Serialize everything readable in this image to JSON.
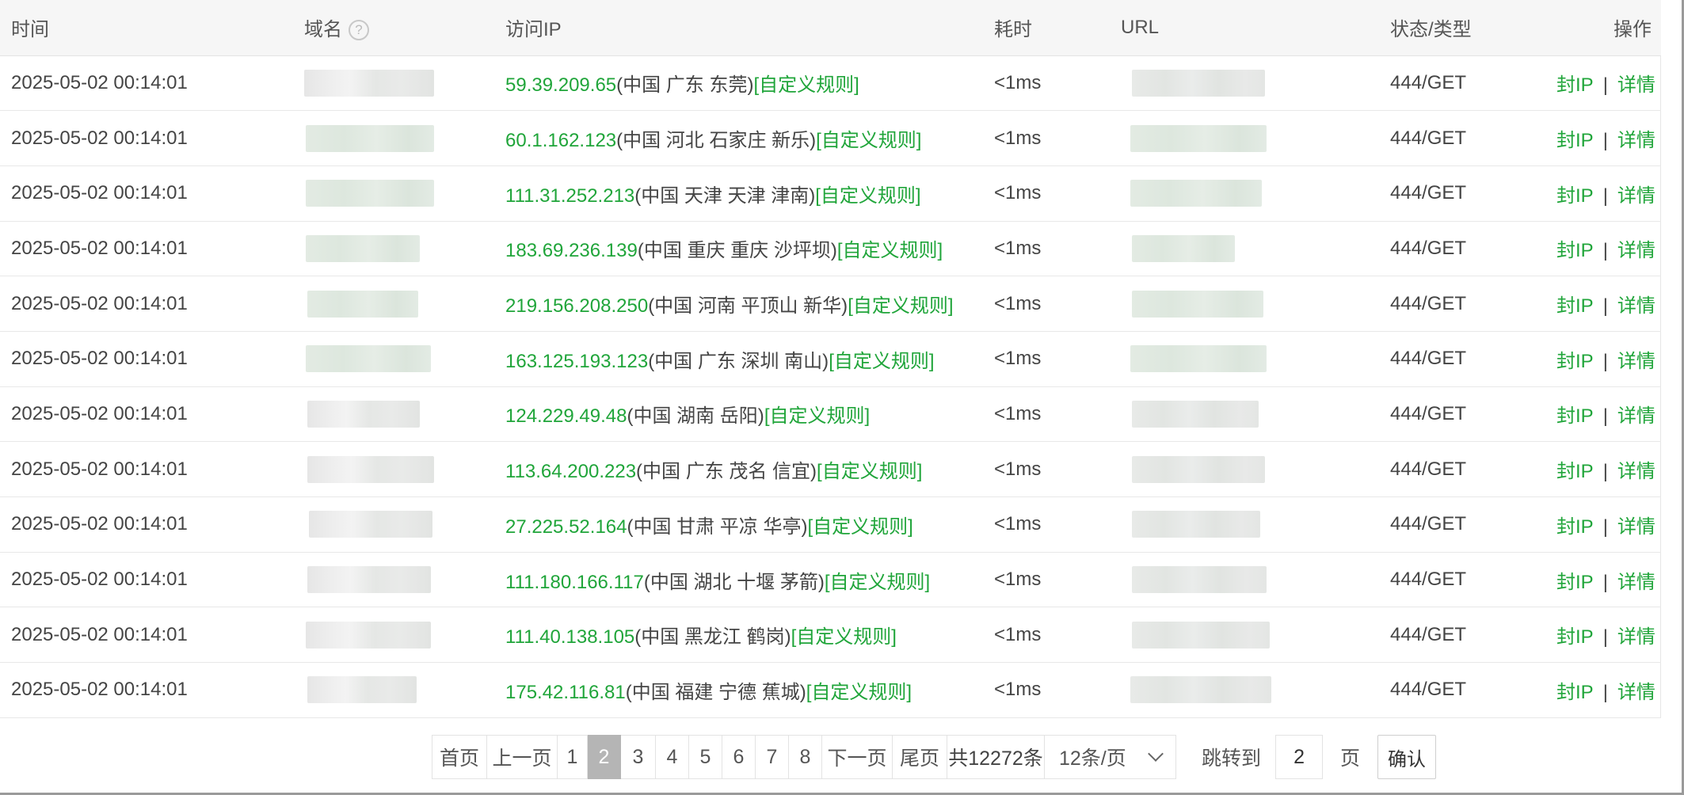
{
  "table": {
    "columns": {
      "time": "时间",
      "domain": "域名",
      "ip": "访问IP",
      "duration": "耗时",
      "url": "URL",
      "status": "状态/类型",
      "action": "操作"
    },
    "domain_help_icon": "question-circle-icon",
    "rows": [
      {
        "time": "2025-05-02 00:14:01",
        "ip": "59.39.209.65",
        "location": "(中国 广东 东莞)",
        "rule": "[自定义规则]",
        "duration": "<1ms",
        "status": "444/GET",
        "block_ip": "封IP",
        "sep": "|",
        "detail": "详情"
      },
      {
        "time": "2025-05-02 00:14:01",
        "ip": "60.1.162.123",
        "location": "(中国 河北 石家庄 新乐)",
        "rule": "[自定义规则]",
        "duration": "<1ms",
        "status": "444/GET",
        "block_ip": "封IP",
        "sep": "|",
        "detail": "详情"
      },
      {
        "time": "2025-05-02 00:14:01",
        "ip": "111.31.252.213",
        "location": "(中国 天津 天津 津南)",
        "rule": "[自定义规则]",
        "duration": "<1ms",
        "status": "444/GET",
        "block_ip": "封IP",
        "sep": "|",
        "detail": "详情"
      },
      {
        "time": "2025-05-02 00:14:01",
        "ip": "183.69.236.139",
        "location": "(中国 重庆 重庆 沙坪坝)",
        "rule": "[自定义规则]",
        "duration": "<1ms",
        "status": "444/GET",
        "block_ip": "封IP",
        "sep": "|",
        "detail": "详情"
      },
      {
        "time": "2025-05-02 00:14:01",
        "ip": "219.156.208.250",
        "location": "(中国 河南 平顶山 新华)",
        "rule": "[自定义规则]",
        "duration": "<1ms",
        "status": "444/GET",
        "block_ip": "封IP",
        "sep": "|",
        "detail": "详情"
      },
      {
        "time": "2025-05-02 00:14:01",
        "ip": "163.125.193.123",
        "location": "(中国 广东 深圳 南山)",
        "rule": "[自定义规则]",
        "duration": "<1ms",
        "status": "444/GET",
        "block_ip": "封IP",
        "sep": "|",
        "detail": "详情"
      },
      {
        "time": "2025-05-02 00:14:01",
        "ip": "124.229.49.48",
        "location": "(中国 湖南 岳阳)",
        "rule": "[自定义规则]",
        "duration": "<1ms",
        "status": "444/GET",
        "block_ip": "封IP",
        "sep": "|",
        "detail": "详情"
      },
      {
        "time": "2025-05-02 00:14:01",
        "ip": "113.64.200.223",
        "location": "(中国 广东 茂名 信宜)",
        "rule": "[自定义规则]",
        "duration": "<1ms",
        "status": "444/GET",
        "block_ip": "封IP",
        "sep": "|",
        "detail": "详情"
      },
      {
        "time": "2025-05-02 00:14:01",
        "ip": "27.225.52.164",
        "location": "(中国 甘肃 平凉 华亭)",
        "rule": "[自定义规则]",
        "duration": "<1ms",
        "status": "444/GET",
        "block_ip": "封IP",
        "sep": "|",
        "detail": "详情"
      },
      {
        "time": "2025-05-02 00:14:01",
        "ip": "111.180.166.117",
        "location": "(中国 湖北 十堰 茅箭)",
        "rule": "[自定义规则]",
        "duration": "<1ms",
        "status": "444/GET",
        "block_ip": "封IP",
        "sep": "|",
        "detail": "详情"
      },
      {
        "time": "2025-05-02 00:14:01",
        "ip": "111.40.138.105",
        "location": "(中国 黑龙江 鹤岗)",
        "rule": "[自定义规则]",
        "duration": "<1ms",
        "status": "444/GET",
        "block_ip": "封IP",
        "sep": "|",
        "detail": "详情"
      },
      {
        "time": "2025-05-02 00:14:01",
        "ip": "175.42.116.81",
        "location": "(中国 福建 宁德 蕉城)",
        "rule": "[自定义规则]",
        "duration": "<1ms",
        "status": "444/GET",
        "block_ip": "封IP",
        "sep": "|",
        "detail": "详情"
      }
    ]
  },
  "pagination": {
    "first": "首页",
    "prev": "上一页",
    "pages": [
      "1",
      "2",
      "3",
      "4",
      "5",
      "6",
      "7",
      "8"
    ],
    "current": "2",
    "next": "下一页",
    "last": "尾页",
    "total": "共12272条",
    "per_page": "12条/页",
    "jump_label": "跳转到",
    "jump_value": "2",
    "jump_unit": "页",
    "confirm": "确认"
  },
  "colors": {
    "accent": "#20a53a",
    "active_page": "#b5b5b5",
    "header_bg": "#f6f6f6"
  }
}
